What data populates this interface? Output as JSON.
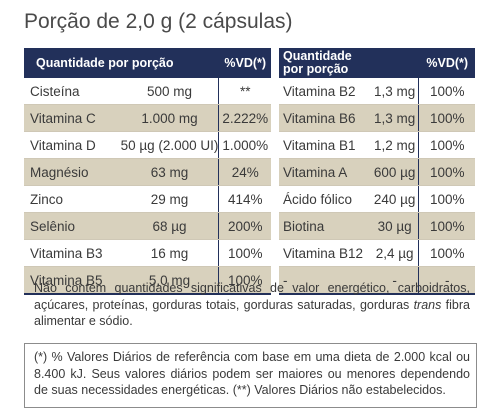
{
  "title": "Porção de 2,0 g (2 cápsulas)",
  "table_left": {
    "headers": {
      "qty": "Quantidade por porção",
      "vd": "%VD(*)"
    },
    "rows": [
      {
        "name": "Cisteína",
        "qty": "500 mg",
        "vd": "**"
      },
      {
        "name": "Vitamina C",
        "qty": "1.000 mg",
        "vd": "2.222%"
      },
      {
        "name": "Vitamina D",
        "qty": "50 µg (2.000 UI)",
        "vd": "1.000%"
      },
      {
        "name": "Magnésio",
        "qty": "63 mg",
        "vd": "24%"
      },
      {
        "name": "Zinco",
        "qty": "29 mg",
        "vd": "414%"
      },
      {
        "name": "Selênio",
        "qty": "68 µg",
        "vd": "200%"
      },
      {
        "name": "Vitamina B3",
        "qty": "16 mg",
        "vd": "100%"
      },
      {
        "name": "Vitamina B5",
        "qty": "5,0 mg",
        "vd": "100%"
      }
    ]
  },
  "table_right": {
    "headers": {
      "qty_line1": "Quantidade",
      "qty_line2": "por porção",
      "vd": "%VD(*)"
    },
    "rows": [
      {
        "name": "Vitamina B2",
        "qty": "1,3 mg",
        "vd": "100%"
      },
      {
        "name": "Vitamina B6",
        "qty": "1,3 mg",
        "vd": "100%"
      },
      {
        "name": "Vitamina B1",
        "qty": "1,2 mg",
        "vd": "100%"
      },
      {
        "name": "Vitamina A",
        "qty": "600 µg",
        "vd": "100%"
      },
      {
        "name": "Ácido fólico",
        "qty": "240 µg",
        "vd": "100%"
      },
      {
        "name": "Biotina",
        "qty": "30 µg",
        "vd": "100%"
      },
      {
        "name": "Vitamina B12",
        "qty": "2,4 µg",
        "vd": "100%"
      },
      {
        "name": "-",
        "qty": "-",
        "vd": "-"
      }
    ]
  },
  "note_main": {
    "before": "Não contém quantidades significativas de valor energético, carboidratos, açúcares, proteínas, gorduras totais, gorduras saturadas, gorduras ",
    "italic": "trans",
    "after": " fibra alimentar e sódio."
  },
  "note_footer": "(*) % Valores Diários de referência com base em uma dieta de 2.000 kcal ou 8.400 kJ. Seus valores diários podem ser maiores ou menores dependendo de suas necessidades energéticas. (**) Valores Diários não estabelecidos."
}
